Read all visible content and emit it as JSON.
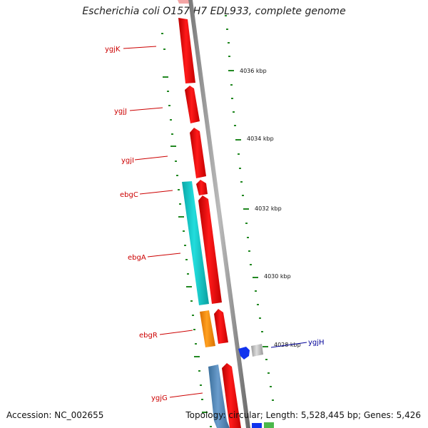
{
  "title": "Escherichia coli O157:H7 EDL933, complete genome",
  "footer": {
    "accession": "Accession: NC_002655",
    "topology": "Topology: circular; Length: 5,528,445 bp; Genes: 5,426"
  },
  "axis_ticks": [
    "4036 kbp",
    "4034 kbp",
    "4032 kbp",
    "4030 kbp",
    "4028 kbp"
  ],
  "gene_labels": [
    {
      "text": "ygjK",
      "color": "#cc0000"
    },
    {
      "text": "ygjJ",
      "color": "#cc0000"
    },
    {
      "text": "ygjI",
      "color": "#cc0000"
    },
    {
      "text": "ebgC",
      "color": "#cc0000"
    },
    {
      "text": "ebgA",
      "color": "#cc0000"
    },
    {
      "text": "ebgR",
      "color": "#cc0000"
    },
    {
      "text": "ygjG",
      "color": "#cc0000"
    },
    {
      "text": "ygjH",
      "color": "#000099"
    }
  ],
  "colors": {
    "forward_cds": "#ee0000",
    "reverse_cds_a": "#11cccc",
    "reverse_cds_b": "#ff8c00",
    "reverse_cds_c": "#4f86b8",
    "blue_cds": "#1133ee",
    "grey_feature": "#bbbbbb",
    "backbone": "#888888",
    "tick_marks": "#228822"
  }
}
